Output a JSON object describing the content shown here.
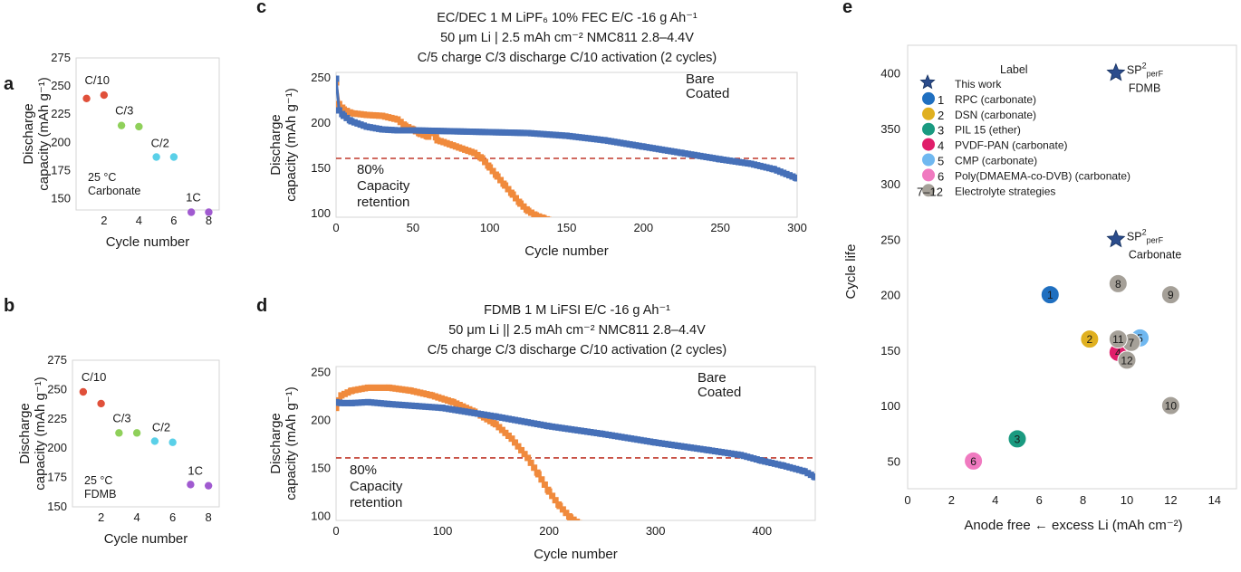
{
  "colors": {
    "bare": "#f08a3c",
    "coated": "#4670b8",
    "reference": "#c0392b",
    "rate_c10": "#e0503a",
    "rate_c3": "#8fd05a",
    "rate_c2": "#5ad0e8",
    "rate_1c": "#a05ad0",
    "star": "#2b4c8c",
    "marker_1": "#1f6fc0",
    "marker_2": "#e0b020",
    "marker_3": "#1a9a80",
    "marker_4": "#e01e6a",
    "marker_5": "#70b8f0",
    "marker_6": "#f07ac0",
    "marker_grey": "#a5a098"
  },
  "chart_data": [
    {
      "panel": "a",
      "type": "scatter",
      "xlabel": "Cycle number",
      "ylabel_line1": "Discharge",
      "ylabel_line2": "capacity (mAh g⁻¹)",
      "ylim": [
        140,
        275
      ],
      "yticks": [
        "275",
        "250",
        "225",
        "200",
        "175",
        "150"
      ],
      "xticks": [
        "2",
        "4",
        "6",
        "8"
      ],
      "condition_line1": "25 °C",
      "condition_line2": "Carbonate",
      "groups": [
        {
          "label": "C/10",
          "color_key": "rate_c10",
          "x": [
            1,
            2
          ],
          "y": [
            239,
            242
          ]
        },
        {
          "label": "C/3",
          "color_key": "rate_c3",
          "x": [
            3,
            4
          ],
          "y": [
            215,
            214
          ]
        },
        {
          "label": "C/2",
          "color_key": "rate_c2",
          "x": [
            5,
            6
          ],
          "y": [
            187,
            187
          ]
        },
        {
          "label": "1C",
          "color_key": "rate_1c",
          "x": [
            7,
            8
          ],
          "y": [
            138,
            138
          ]
        }
      ]
    },
    {
      "panel": "b",
      "type": "scatter",
      "xlabel": "Cycle number",
      "ylabel_line1": "Discharge",
      "ylabel_line2": "capacity (mAh g⁻¹)",
      "ylim": [
        150,
        275
      ],
      "yticks": [
        "275",
        "250",
        "225",
        "200",
        "175",
        "150"
      ],
      "xticks": [
        "2",
        "4",
        "6",
        "8"
      ],
      "condition_line1": "25 °C",
      "condition_line2": "FDMB",
      "groups": [
        {
          "label": "C/10",
          "color_key": "rate_c10",
          "x": [
            1,
            2
          ],
          "y": [
            248,
            238
          ]
        },
        {
          "label": "C/3",
          "color_key": "rate_c3",
          "x": [
            3,
            4
          ],
          "y": [
            213,
            213
          ]
        },
        {
          "label": "C/2",
          "color_key": "rate_c2",
          "x": [
            5,
            6
          ],
          "y": [
            206,
            205
          ]
        },
        {
          "label": "1C",
          "color_key": "rate_1c",
          "x": [
            7,
            8
          ],
          "y": [
            169,
            168
          ]
        }
      ]
    },
    {
      "panel": "c",
      "type": "line",
      "title_line1": "EC/DEC 1 M LiPF₆ 10% FEC E/C -16 g Ah⁻¹",
      "title_line2": "50 μm Li | 2.5 mAh cm⁻² NMC811 2.8–4.4V",
      "title_line3": "C/5 charge C/3 discharge C/10 activation (2 cycles)",
      "xlabel": "Cycle number",
      "ylabel_line1": "Discharge",
      "ylabel_line2": "capacity (mAh g⁻¹)",
      "xlim": [
        0,
        300
      ],
      "ylim": [
        95,
        255
      ],
      "xticks": [
        "0",
        "50",
        "100",
        "150",
        "200",
        "250",
        "300"
      ],
      "yticks": [
        "250",
        "200",
        "150",
        "100"
      ],
      "reference_y": 160,
      "reference_line1": "80%",
      "reference_line2": "Capacity",
      "reference_line3": "retention",
      "series": [
        {
          "name": "Bare",
          "color_key": "bare",
          "x": [
            0,
            2,
            5,
            10,
            20,
            30,
            40,
            45,
            50,
            55,
            60,
            63,
            66,
            70,
            80,
            90,
            95,
            100,
            105,
            110,
            115,
            120,
            125,
            130,
            135,
            138
          ],
          "y": [
            244,
            220,
            214,
            210,
            208,
            207,
            203,
            196,
            192,
            187,
            184,
            190,
            180,
            178,
            172,
            166,
            160,
            150,
            140,
            130,
            120,
            110,
            102,
            97,
            94,
            92
          ]
        },
        {
          "name": "Coated",
          "color_key": "coated",
          "x": [
            0,
            2,
            5,
            10,
            20,
            30,
            40,
            50,
            75,
            100,
            125,
            150,
            175,
            200,
            225,
            250,
            270,
            285,
            300
          ],
          "y": [
            248,
            213,
            207,
            201,
            195,
            192,
            191,
            191,
            190,
            189,
            188,
            185,
            180,
            173,
            166,
            159,
            154,
            148,
            138
          ]
        }
      ]
    },
    {
      "panel": "d",
      "type": "line",
      "title_line1": "FDMB 1 M LiFSI E/C -16 g Ah⁻¹",
      "title_line2": "50 μm Li || 2.5 mAh cm⁻² NMC811 2.8–4.4V",
      "title_line3": "C/5 charge C/3 discharge C/10 activation (2 cycles)",
      "xlabel": "Cycle number",
      "ylabel_line1": "Discharge",
      "ylabel_line2": "capacity (mAh g⁻¹)",
      "xlim": [
        0,
        450
      ],
      "ylim": [
        95,
        255
      ],
      "xticks": [
        "0",
        "100",
        "200",
        "300",
        "400"
      ],
      "yticks": [
        "250",
        "200",
        "150",
        "100"
      ],
      "reference_y": 160,
      "reference_line1": "80%",
      "reference_line2": "Capacity",
      "reference_line3": "retention",
      "series": [
        {
          "name": "Bare",
          "color_key": "bare",
          "x": [
            0,
            5,
            15,
            30,
            50,
            70,
            90,
            110,
            130,
            150,
            165,
            180,
            190,
            200,
            210,
            220,
            228
          ],
          "y": [
            212,
            225,
            230,
            233,
            233,
            230,
            225,
            218,
            208,
            195,
            180,
            160,
            143,
            125,
            110,
            98,
            92
          ]
        },
        {
          "name": "Coated",
          "color_key": "coated",
          "x": [
            0,
            5,
            15,
            30,
            50,
            75,
            100,
            150,
            200,
            250,
            300,
            350,
            380,
            400,
            420,
            440,
            450
          ],
          "y": [
            218,
            217,
            217,
            218,
            216,
            214,
            212,
            203,
            193,
            185,
            176,
            168,
            163,
            157,
            152,
            146,
            140
          ]
        }
      ]
    },
    {
      "panel": "e",
      "type": "scatter",
      "xlabel": "Anode free ← excess Li (mAh cm⁻²)",
      "ylabel": "Cycle life",
      "xlim": [
        0,
        15
      ],
      "ylim": [
        25,
        425
      ],
      "xticks": [
        "0",
        "2",
        "4",
        "6",
        "8",
        "10",
        "12",
        "14"
      ],
      "yticks": [
        "400",
        "350",
        "300",
        "250",
        "200",
        "150",
        "100",
        "50"
      ],
      "legend_title": "Label",
      "legend": [
        {
          "marker": "star",
          "text": "This work"
        },
        {
          "marker": "1",
          "color_key": "marker_1",
          "text": "RPC (carbonate)"
        },
        {
          "marker": "2",
          "color_key": "marker_2",
          "text": "DSN (carbonate)"
        },
        {
          "marker": "3",
          "color_key": "marker_3",
          "text": "PIL 15 (ether)"
        },
        {
          "marker": "4",
          "color_key": "marker_4",
          "text": "PVDF-PAN (carbonate)"
        },
        {
          "marker": "5",
          "color_key": "marker_5",
          "text": "CMP (carbonate)"
        },
        {
          "marker": "6",
          "color_key": "marker_6",
          "text": "Poly(DMAEMA-co-DVB) (carbonate)"
        },
        {
          "marker": "7–12",
          "color_key": "marker_grey",
          "text": "Electrolyte strategies"
        }
      ],
      "stars": [
        {
          "x": 9.5,
          "y": 400,
          "label_base": "SP",
          "label_sup": "2",
          "label_sub": "perF",
          "label_line2": "FDMB"
        },
        {
          "x": 9.5,
          "y": 250,
          "label_base": "SP",
          "label_sup": "2",
          "label_sub": "perF",
          "label_line2": "Carbonate"
        }
      ],
      "points": [
        {
          "label": "1",
          "x": 6.5,
          "y": 200,
          "color_key": "marker_1"
        },
        {
          "label": "2",
          "x": 8.3,
          "y": 160,
          "color_key": "marker_2"
        },
        {
          "label": "3",
          "x": 5.0,
          "y": 70,
          "color_key": "marker_3"
        },
        {
          "label": "4",
          "x": 9.6,
          "y": 148,
          "color_key": "marker_4"
        },
        {
          "label": "5",
          "x": 10.6,
          "y": 161,
          "color_key": "marker_5"
        },
        {
          "label": "6",
          "x": 3.0,
          "y": 50,
          "color_key": "marker_6"
        },
        {
          "label": "7",
          "x": 10.2,
          "y": 157,
          "color_key": "marker_grey"
        },
        {
          "label": "8",
          "x": 9.6,
          "y": 210,
          "color_key": "marker_grey"
        },
        {
          "label": "9",
          "x": 12.0,
          "y": 200,
          "color_key": "marker_grey"
        },
        {
          "label": "10",
          "x": 12.0,
          "y": 100,
          "color_key": "marker_grey"
        },
        {
          "label": "11",
          "x": 9.6,
          "y": 160,
          "color_key": "marker_grey"
        },
        {
          "label": "12",
          "x": 10.0,
          "y": 141,
          "color_key": "marker_grey"
        }
      ]
    }
  ]
}
